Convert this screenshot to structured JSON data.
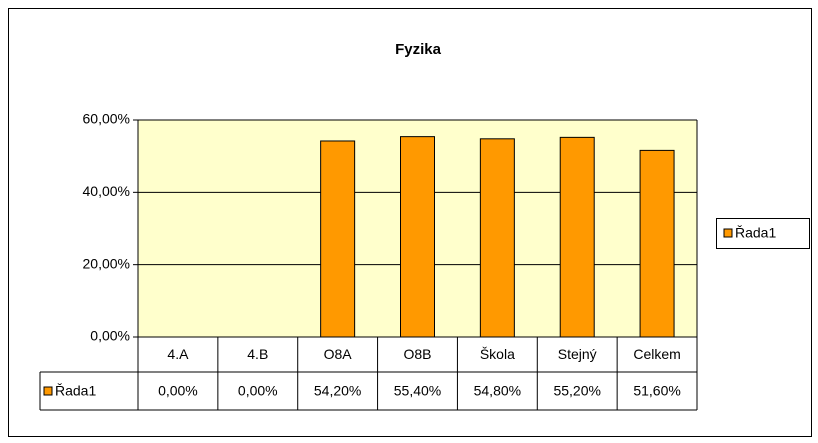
{
  "chart_data": {
    "type": "bar",
    "title": "Fyzika",
    "categories": [
      "4.A",
      "4.B",
      "O8A",
      "O8B",
      "Škola",
      "Stejný",
      "Celkem"
    ],
    "series": [
      {
        "name": "Řada1",
        "color": "#FF9900",
        "values": [
          0,
          0,
          54.2,
          55.4,
          54.8,
          55.2,
          51.6
        ],
        "value_labels": [
          "0,00%",
          "0,00%",
          "54,20%",
          "55,40%",
          "54,80%",
          "55,20%",
          "51,60%"
        ]
      }
    ],
    "ylim": [
      0,
      60
    ],
    "yticks": [
      {
        "value": 0,
        "label": "0,00%"
      },
      {
        "value": 20,
        "label": "20,00%"
      },
      {
        "value": 40,
        "label": "40,00%"
      },
      {
        "value": 60,
        "label": "60,00%"
      }
    ],
    "grid": true,
    "legend": "right",
    "plot_background": "#FFFFCC"
  }
}
